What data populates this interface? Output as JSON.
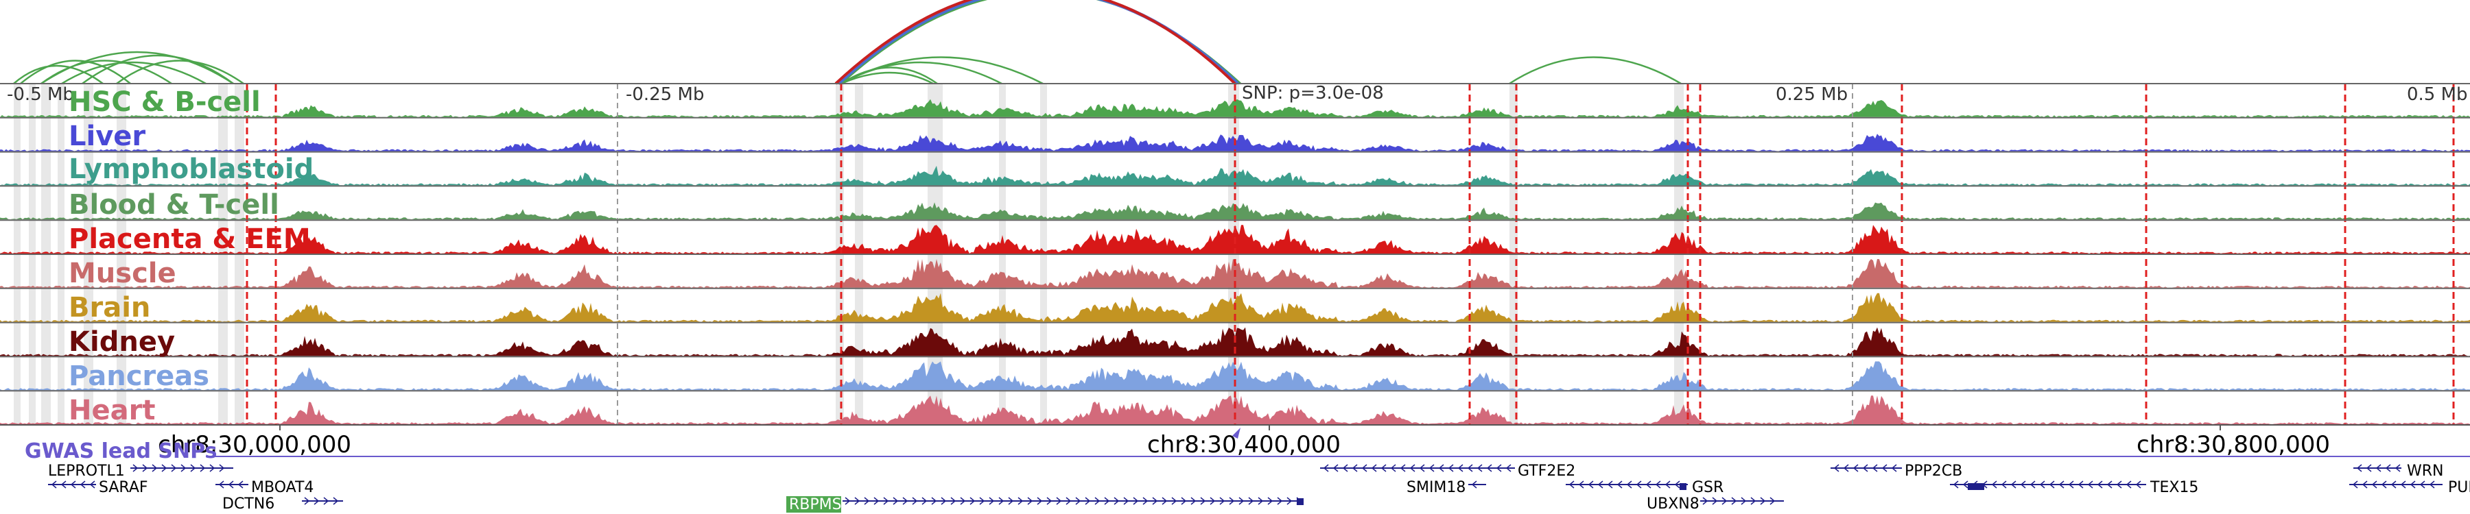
{
  "axis": {
    "top_ticks": [
      "-0.5 Mb",
      "-0.25 Mb",
      "SNP: p=3.0e-08",
      "0.25 Mb",
      "0.5 Mb"
    ],
    "bottom_ticks": [
      "chr8:30,000,000",
      "chr8:30,400,000",
      "chr8:30,800,000"
    ]
  },
  "tracks": [
    {
      "name": "HSC & B-cell",
      "color": "#4da54d"
    },
    {
      "name": "Liver",
      "color": "#4949d6"
    },
    {
      "name": "Lymphoblastoid",
      "color": "#3d9e8c"
    },
    {
      "name": "Blood & T-cell",
      "color": "#5e9a5e"
    },
    {
      "name": "Placenta & EEM",
      "color": "#d81818"
    },
    {
      "name": "Muscle",
      "color": "#c86a6a"
    },
    {
      "name": "Brain",
      "color": "#c39422"
    },
    {
      "name": "Kidney",
      "color": "#6b0a0a"
    },
    {
      "name": "Pancreas",
      "color": "#7fa2e0"
    },
    {
      "name": "Heart",
      "color": "#d36a7b"
    }
  ],
  "gwas": {
    "label": "GWAS lead SNPs",
    "color": "#6a5acd"
  },
  "genes": [
    {
      "name": "LEPROTL1"
    },
    {
      "name": "SARAF"
    },
    {
      "name": "MBOAT4"
    },
    {
      "name": "DCTN6"
    },
    {
      "name": "RBPMS"
    },
    {
      "name": "GTF2E2"
    },
    {
      "name": "SMIM18"
    },
    {
      "name": "GSR"
    },
    {
      "name": "UBXN8"
    },
    {
      "name": "PPP2CB"
    },
    {
      "name": "TEX15"
    },
    {
      "name": "WRN"
    },
    {
      "name": "PUR"
    }
  ],
  "colors": {
    "highlight_gene": "#4fa84f",
    "enhancer_line": "#e02020",
    "arc_green": "#4da54d",
    "arc_red": "#c82020",
    "arc_blue": "#4a6fd0",
    "gene_line": "#1f1f8a"
  }
}
